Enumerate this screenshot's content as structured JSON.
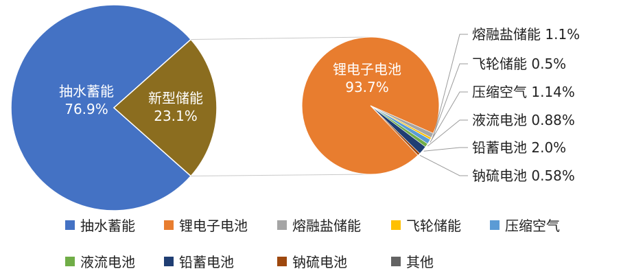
{
  "chart_data": [
    {
      "type": "pie",
      "categories": [
        "抽水蓄能",
        "新型储能"
      ],
      "values": [
        76.9,
        23.1
      ],
      "data_labels": [
        [
          "抽水蓄能",
          "76.9%"
        ],
        [
          "新型储能",
          "23.1%"
        ]
      ],
      "colors": [
        "#4472C4",
        "#8B6D1F"
      ]
    },
    {
      "type": "pie",
      "categories": [
        "锂电子电池",
        "熔融盐储能",
        "飞轮储能",
        "压缩空气",
        "液流电池",
        "铅蓄电池",
        "钠硫电池"
      ],
      "values": [
        93.7,
        1.1,
        0.5,
        1.14,
        0.88,
        2.0,
        0.58
      ],
      "data_labels": [
        [
          "锂电子电池",
          "93.7%"
        ],
        [
          "熔融盐储能 1.1%"
        ],
        [
          "飞轮储能 0.5%"
        ],
        [
          "压缩空气 1.14%"
        ],
        [
          "液流电池 0.88%"
        ],
        [
          "铅蓄电池 2.0%"
        ],
        [
          "钠硫电池 0.58%"
        ]
      ],
      "colors": [
        "#E87D2F",
        "#A5A5A5",
        "#FFC000",
        "#5B9BD5",
        "#70AD47",
        "#1F3E73",
        "#9E480E"
      ]
    }
  ],
  "legend": {
    "placement": "bottom",
    "items": [
      {
        "label": "抽水蓄能",
        "color": "#4472C4"
      },
      {
        "label": "锂电子电池",
        "color": "#E87D2F"
      },
      {
        "label": "熔融盐储能",
        "color": "#A5A5A5"
      },
      {
        "label": "飞轮储能",
        "color": "#FFC000"
      },
      {
        "label": "压缩空气",
        "color": "#5B9BD5"
      },
      {
        "label": "液流电池",
        "color": "#70AD47"
      },
      {
        "label": "铅蓄电池",
        "color": "#1F3E73"
      },
      {
        "label": "钠硫电池",
        "color": "#9E480E"
      },
      {
        "label": "其他",
        "color": "#636363"
      }
    ]
  }
}
